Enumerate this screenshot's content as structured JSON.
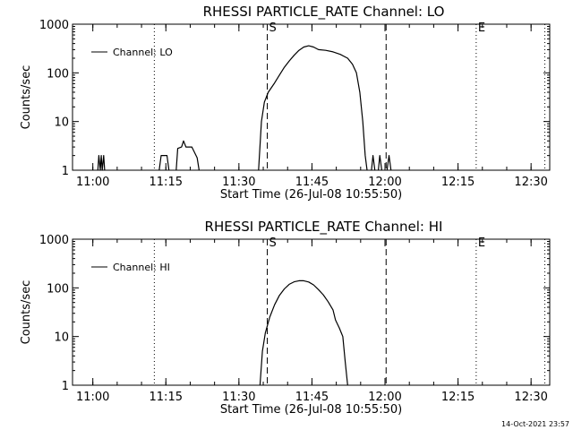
{
  "footer": {
    "timestamp": "14-Oct-2021 23:57"
  },
  "chart_data": [
    {
      "type": "line",
      "title": "RHESSI PARTICLE_RATE Channel: LO",
      "xlabel": "Start Time (26-Jul-08 10:55:50)",
      "ylabel": "Counts/sec",
      "yscale": "log",
      "xlim_minutes_after_start": [
        0,
        98
      ],
      "ylim": [
        1,
        1000
      ],
      "x_ticks": [
        "11:00",
        "11:15",
        "11:30",
        "11:45",
        "12:00",
        "12:15",
        "12:30"
      ],
      "y_ticks": [
        "1",
        "10",
        "100",
        "1000"
      ],
      "legend": {
        "position": "top-left",
        "label": "Channel: LO"
      },
      "markers": [
        {
          "label": "",
          "x": 16.8,
          "style": "dotted"
        },
        {
          "label": "S",
          "x": 40.0,
          "style": "dashed"
        },
        {
          "label": "",
          "x": 64.4,
          "style": "dashed"
        },
        {
          "label": "E",
          "x": 82.9,
          "style": "dotted"
        },
        {
          "label": "",
          "x": 97.0,
          "style": "dotted"
        }
      ],
      "series": [
        {
          "name": "Channel: LO",
          "color": "#000000",
          "segments": [
            [
              [
                5.2,
                1
              ],
              [
                5.4,
                2
              ],
              [
                5.7,
                1
              ],
              [
                5.9,
                2
              ],
              [
                6.1,
                1
              ],
              [
                6.4,
                2
              ],
              [
                6.6,
                1
              ]
            ],
            [
              [
                17.8,
                1
              ],
              [
                18.2,
                2
              ],
              [
                19.4,
                2
              ],
              [
                19.8,
                1
              ]
            ],
            [
              [
                21.3,
                1
              ],
              [
                21.6,
                2.8
              ],
              [
                22.4,
                3
              ],
              [
                22.8,
                4
              ],
              [
                23.3,
                3
              ],
              [
                24.5,
                3
              ],
              [
                25.6,
                1.8
              ],
              [
                26,
                1
              ]
            ],
            [
              [
                38.2,
                1
              ],
              [
                38.8,
                10
              ],
              [
                39.4,
                25
              ],
              [
                40.2,
                40
              ],
              [
                41.5,
                62
              ],
              [
                42.5,
                90
              ],
              [
                43.5,
                130
              ],
              [
                44.5,
                175
              ],
              [
                45.5,
                230
              ],
              [
                46.5,
                290
              ],
              [
                47.5,
                340
              ],
              [
                48.5,
                360
              ],
              [
                49.5,
                340
              ],
              [
                50.5,
                300
              ],
              [
                52,
                290
              ],
              [
                53.5,
                270
              ],
              [
                55,
                240
              ],
              [
                56.5,
                200
              ],
              [
                57.5,
                150
              ],
              [
                58.3,
                100
              ],
              [
                59,
                40
              ],
              [
                59.6,
                10
              ],
              [
                60.1,
                2
              ],
              [
                60.5,
                1
              ]
            ],
            [
              [
                61.4,
                1
              ],
              [
                61.7,
                2
              ],
              [
                62.1,
                1
              ]
            ],
            [
              [
                62.8,
                1
              ],
              [
                63.1,
                2
              ],
              [
                63.5,
                1
              ]
            ],
            [
              [
                64.6,
                1
              ],
              [
                65,
                2
              ],
              [
                65.4,
                1
              ]
            ]
          ]
        }
      ]
    },
    {
      "type": "line",
      "title": "RHESSI PARTICLE_RATE Channel: HI",
      "xlabel": "Start Time (26-Jul-08 10:55:50)",
      "ylabel": "Counts/sec",
      "yscale": "log",
      "xlim_minutes_after_start": [
        0,
        98
      ],
      "ylim": [
        1,
        1000
      ],
      "x_ticks": [
        "11:00",
        "11:15",
        "11:30",
        "11:45",
        "12:00",
        "12:15",
        "12:30"
      ],
      "y_ticks": [
        "1",
        "10",
        "100",
        "1000"
      ],
      "legend": {
        "position": "top-left",
        "label": "Channel: HI"
      },
      "markers": [
        {
          "label": "",
          "x": 16.8,
          "style": "dotted"
        },
        {
          "label": "S",
          "x": 40.0,
          "style": "dashed"
        },
        {
          "label": "",
          "x": 64.4,
          "style": "dashed"
        },
        {
          "label": "E",
          "x": 82.9,
          "style": "dotted"
        },
        {
          "label": "",
          "x": 97.0,
          "style": "dotted"
        }
      ],
      "series": [
        {
          "name": "Channel: HI",
          "color": "#000000",
          "segments": [
            [
              [
                38.5,
                1
              ],
              [
                39,
                5
              ],
              [
                39.6,
                12
              ],
              [
                40.5,
                25
              ],
              [
                41.5,
                45
              ],
              [
                42.5,
                70
              ],
              [
                43.5,
                95
              ],
              [
                44.5,
                118
              ],
              [
                45.5,
                133
              ],
              [
                46.5,
                140
              ],
              [
                47.5,
                140
              ],
              [
                48.5,
                132
              ],
              [
                49.5,
                115
              ],
              [
                50.5,
                92
              ],
              [
                51.5,
                72
              ],
              [
                52.5,
                52
              ],
              [
                53.5,
                35
              ],
              [
                54,
                22
              ],
              [
                54.8,
                15
              ],
              [
                55.5,
                10
              ],
              [
                56,
                3
              ],
              [
                56.5,
                1
              ]
            ]
          ]
        }
      ]
    }
  ]
}
